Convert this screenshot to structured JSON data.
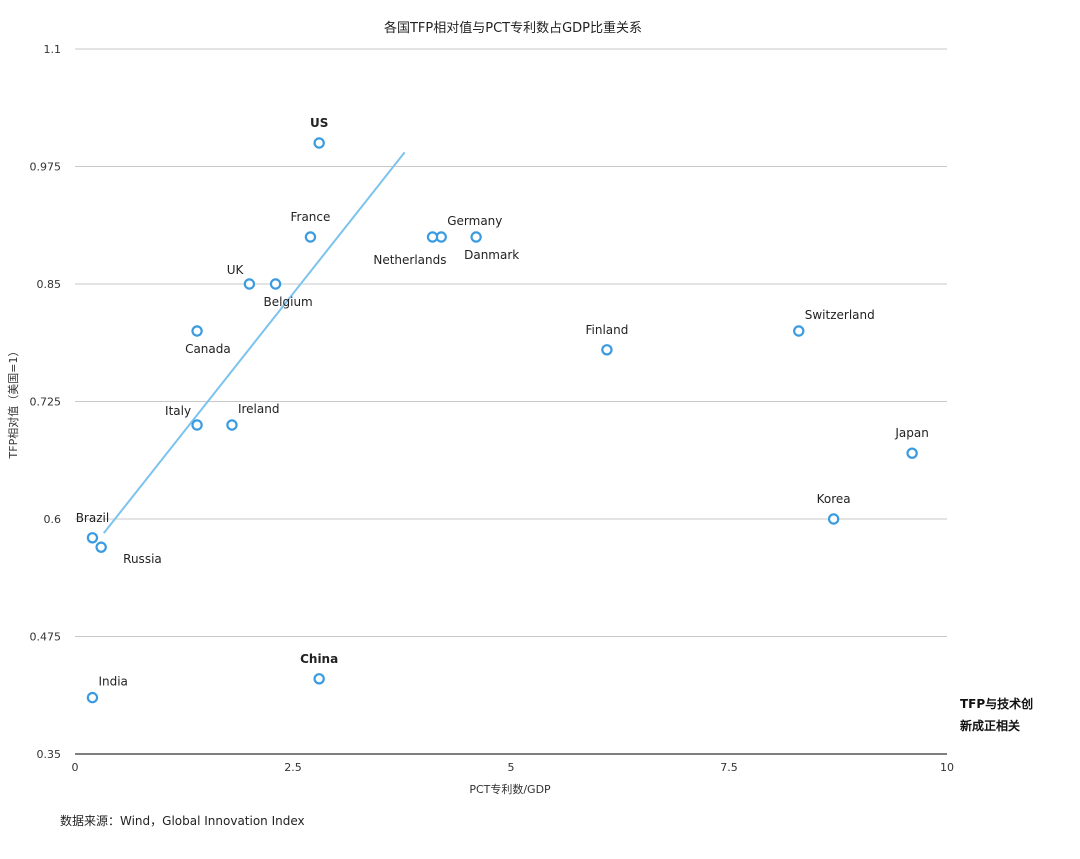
{
  "chart_data": {
    "type": "scatter",
    "title": "各国TFP相对值与PCT专利数占GDP比重关系",
    "xlabel": "PCT专利数/GDP",
    "ylabel": "TFP相对值（美国=1）",
    "xlim": [
      0,
      10
    ],
    "ylim": [
      0.35,
      1.1
    ],
    "xticks": [
      0,
      2.5,
      5,
      7.5,
      10
    ],
    "xtick_labels": [
      "0",
      "2.5",
      "5",
      "7.5",
      "10"
    ],
    "yticks": [
      0.35,
      0.475,
      0.6,
      0.725,
      0.85,
      0.975,
      1.1
    ],
    "ytick_labels": [
      "0.35",
      "0.475",
      "0.6",
      "0.725",
      "0.85",
      "0.975",
      "1.1"
    ],
    "grid": true,
    "point_color": "#3a9be0",
    "trendline_color": "#7cc3ee",
    "trendline": [
      [
        0.33,
        0.585
      ],
      [
        3.78,
        0.99
      ]
    ],
    "points": [
      {
        "label": "US",
        "x": 2.8,
        "y": 1.0,
        "highlight": true,
        "color": "#2e7d23",
        "label_pos": "above"
      },
      {
        "label": "France",
        "x": 2.7,
        "y": 0.9,
        "label_pos": "above"
      },
      {
        "label": "Germany",
        "x": 4.2,
        "y": 0.9,
        "label_pos": "above-right"
      },
      {
        "label": "Netherlands",
        "x": 4.1,
        "y": 0.9,
        "label_pos": "below-left"
      },
      {
        "label": "Danmark",
        "x": 4.6,
        "y": 0.9,
        "label_pos": "below-right"
      },
      {
        "label": "UK",
        "x": 2.0,
        "y": 0.85,
        "label_pos": "above-left"
      },
      {
        "label": "Belgium",
        "x": 2.3,
        "y": 0.85,
        "label_pos": "below-right"
      },
      {
        "label": "Canada",
        "x": 1.4,
        "y": 0.8,
        "label_pos": "below-right"
      },
      {
        "label": "Italy",
        "x": 1.4,
        "y": 0.7,
        "label_pos": "above-left"
      },
      {
        "label": "Ireland",
        "x": 1.8,
        "y": 0.7,
        "label_pos": "above-right"
      },
      {
        "label": "Brazil",
        "x": 0.2,
        "y": 0.58,
        "label_pos": "above"
      },
      {
        "label": "Russia",
        "x": 0.3,
        "y": 0.57,
        "label_pos": "right"
      },
      {
        "label": "India",
        "x": 0.2,
        "y": 0.41,
        "label_pos": "above-right"
      },
      {
        "label": "China",
        "x": 2.8,
        "y": 0.43,
        "highlight": true,
        "color": "#c0392b",
        "label_pos": "above"
      },
      {
        "label": "Finland",
        "x": 6.1,
        "y": 0.78,
        "label_pos": "above"
      },
      {
        "label": "Switzerland",
        "x": 8.3,
        "y": 0.8,
        "label_pos": "above-right"
      },
      {
        "label": "Japan",
        "x": 9.6,
        "y": 0.67,
        "label_pos": "above"
      },
      {
        "label": "Korea",
        "x": 8.7,
        "y": 0.6,
        "label_pos": "above"
      }
    ]
  },
  "annotation": {
    "line1": "TFP与技术创",
    "line2": "新成正相关"
  },
  "source": "数据来源：Wind，Global Innovation Index"
}
